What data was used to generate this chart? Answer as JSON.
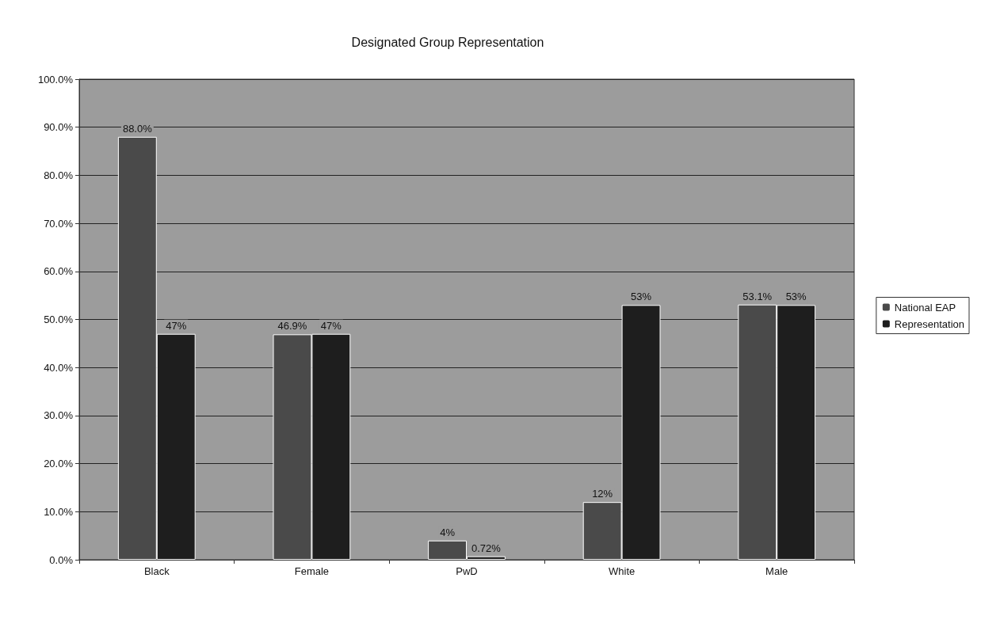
{
  "chart_data": {
    "type": "bar",
    "title": "Designated Group Representation",
    "categories": [
      "Black",
      "Female",
      "PwD",
      "White",
      "Male"
    ],
    "series": [
      {
        "name": "National EAP",
        "color": "#4a4a4a",
        "values": [
          88.0,
          46.9,
          4,
          12,
          53.1
        ],
        "value_labels": [
          "88.0%",
          "46.9%",
          "4%",
          "12%",
          "53.1%"
        ]
      },
      {
        "name": "Representation",
        "color": "#1e1e1e",
        "values": [
          47,
          47,
          0.72,
          53,
          53
        ],
        "value_labels": [
          "47%",
          "47%",
          "0.72%",
          "53%",
          "53%"
        ]
      }
    ],
    "ylim": [
      0,
      100
    ],
    "yticks": [
      {
        "value": 0,
        "label": "0.0%"
      },
      {
        "value": 10,
        "label": "10.0%"
      },
      {
        "value": 20,
        "label": "20.0%"
      },
      {
        "value": 30,
        "label": "30.0%"
      },
      {
        "value": 40,
        "label": "40.0%"
      },
      {
        "value": 50,
        "label": "50.0%"
      },
      {
        "value": 60,
        "label": "60.0%"
      },
      {
        "value": 70,
        "label": "70.0%"
      },
      {
        "value": 80,
        "label": "80.0%"
      },
      {
        "value": 90,
        "label": "90.0%"
      },
      {
        "value": 100,
        "label": "100.0%"
      }
    ],
    "grid": "y",
    "legend": "right"
  }
}
